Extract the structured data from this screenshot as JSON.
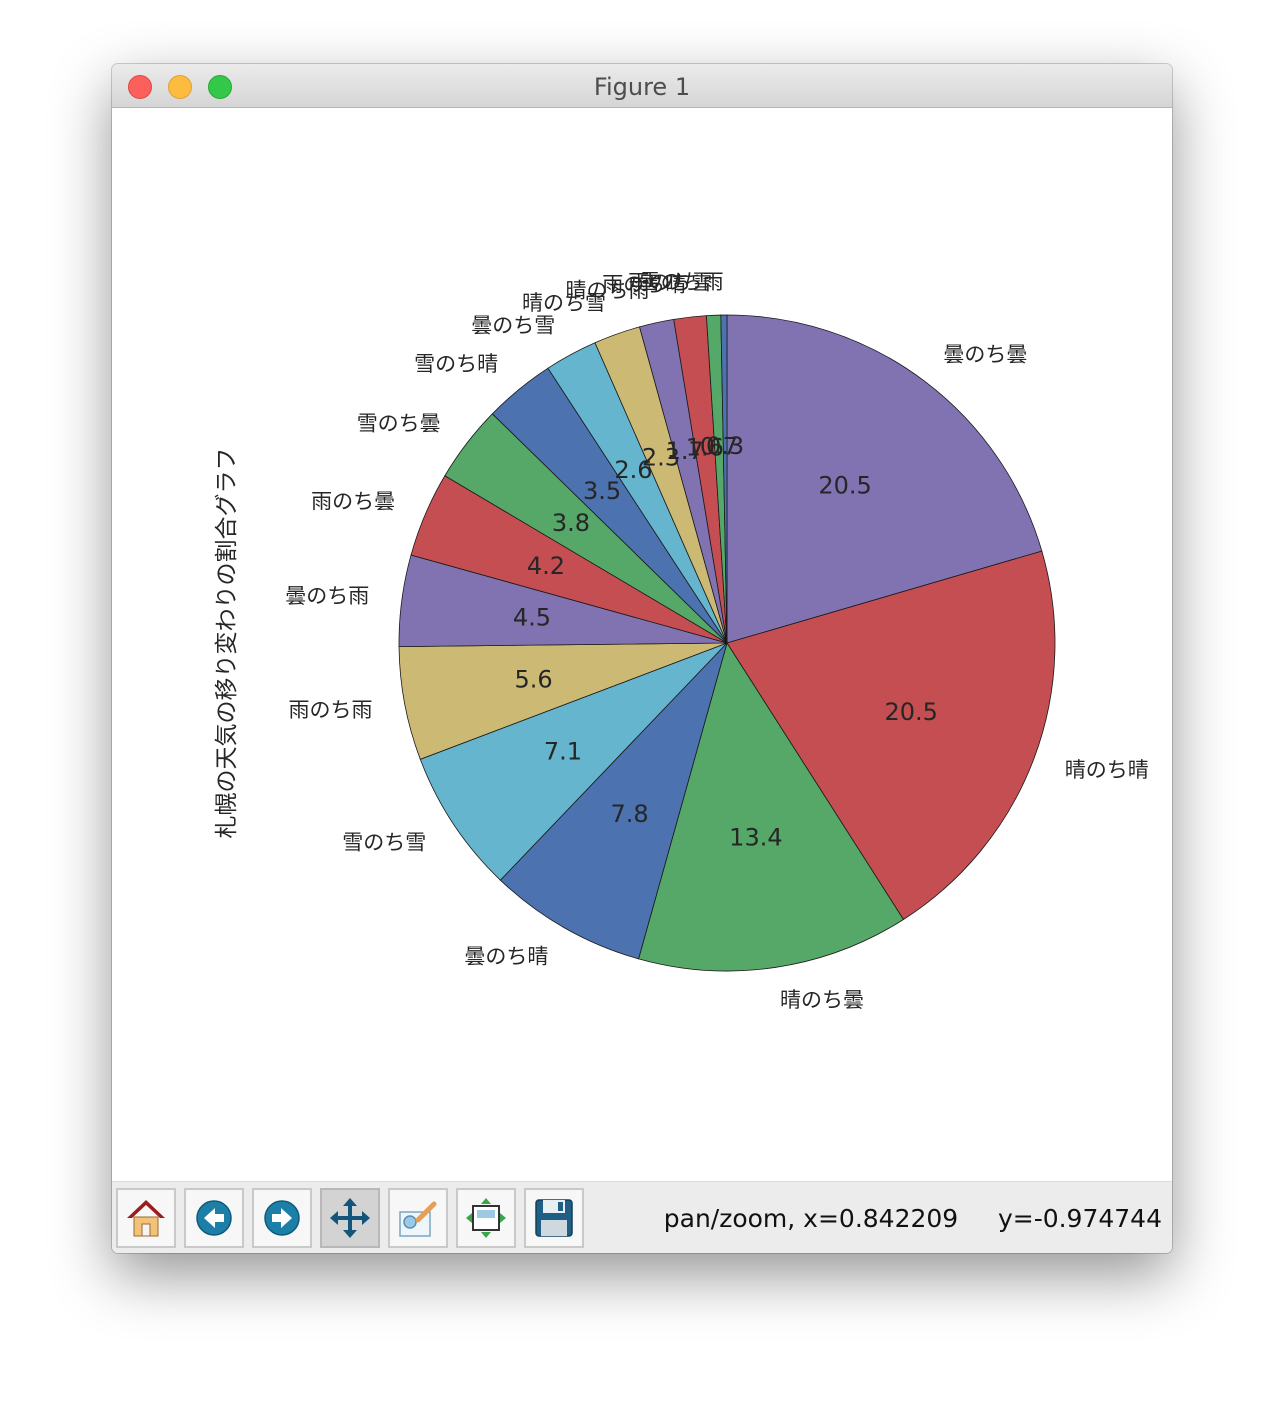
{
  "window": {
    "title": "Figure 1"
  },
  "toolbar": {
    "buttons": [
      {
        "name": "home-button",
        "icon": "home-icon"
      },
      {
        "name": "back-button",
        "icon": "back-arrow-icon"
      },
      {
        "name": "forward-button",
        "icon": "forward-arrow-icon"
      },
      {
        "name": "pan-zoom-button",
        "icon": "move-arrows-icon",
        "active": true
      },
      {
        "name": "zoom-rect-button",
        "icon": "zoom-rectangle-icon"
      },
      {
        "name": "subplots-button",
        "icon": "subplots-adjust-icon"
      },
      {
        "name": "save-button",
        "icon": "floppy-disk-icon"
      }
    ],
    "status": "pan/zoom, x=0.842209     y=-0.974744"
  },
  "chart_data": {
    "type": "pie",
    "ylabel": "札幌の天気の移り変わりの割合グラフ",
    "start_angle_deg": 90,
    "direction": "clockwise",
    "slices": [
      {
        "label": "曇のち曇",
        "value": 20.5,
        "pct_label": "20.5",
        "color": "#8172b2"
      },
      {
        "label": "晴のち晴",
        "value": 20.5,
        "pct_label": "20.5",
        "color": "#c44e52"
      },
      {
        "label": "晴のち曇",
        "value": 13.4,
        "pct_label": "13.4",
        "color": "#55a868"
      },
      {
        "label": "曇のち晴",
        "value": 7.8,
        "pct_label": "7.8",
        "color": "#4c72b0"
      },
      {
        "label": "雪のち雪",
        "value": 7.1,
        "pct_label": "7.1",
        "color": "#64b5cd"
      },
      {
        "label": "雨のち雨",
        "value": 5.6,
        "pct_label": "5.6",
        "color": "#ccb974"
      },
      {
        "label": "曇のち雨",
        "value": 4.5,
        "pct_label": "4.5",
        "color": "#8172b2"
      },
      {
        "label": "雨のち曇",
        "value": 4.2,
        "pct_label": "4.2",
        "color": "#c44e52"
      },
      {
        "label": "雪のち曇",
        "value": 3.8,
        "pct_label": "3.8",
        "color": "#55a868"
      },
      {
        "label": "雪のち晴",
        "value": 3.5,
        "pct_label": "3.5",
        "color": "#4c72b0"
      },
      {
        "label": "曇のち雪",
        "value": 2.6,
        "pct_label": "2.6",
        "color": "#64b5cd"
      },
      {
        "label": "晴のち雪",
        "value": 2.3,
        "pct_label": "2.3",
        "color": "#ccb974"
      },
      {
        "label": "晴のち雨",
        "value": 1.7,
        "pct_label": "1.7",
        "color": "#8172b2"
      },
      {
        "label": "雨のち晴",
        "value": 1.6,
        "pct_label": "1.6",
        "color": "#c44e52"
      },
      {
        "label": "雨のち雪",
        "value": 0.7,
        "pct_label": "0.7",
        "color": "#55a868"
      },
      {
        "label": "雪のち雨",
        "value": 0.3,
        "pct_label": "0.3",
        "color": "#4c72b0"
      }
    ]
  }
}
